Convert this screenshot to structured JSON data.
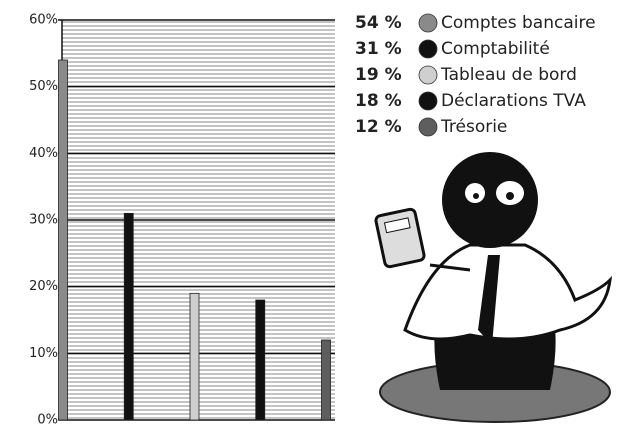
{
  "chart_data": {
    "type": "bar",
    "categories": [
      "Comptes bancaire",
      "Comptabilité",
      "Tableau de bord",
      "Déclarations TVA",
      "Trésorie"
    ],
    "values": [
      54,
      31,
      19,
      18,
      12
    ],
    "value_labels": [
      "54 %",
      "31 %",
      "19 %",
      "18 %",
      "12 %"
    ],
    "colors": [
      "#8a8a8a",
      "#111111",
      "#cfcfcf",
      "#111111",
      "#5e5e5e"
    ],
    "ylim": [
      0,
      60
    ],
    "yticks": [
      {
        "value": 0,
        "label": "0%"
      },
      {
        "value": 10,
        "label": "10%"
      },
      {
        "value": 20,
        "label": "20%"
      },
      {
        "value": 30,
        "label": "30%"
      },
      {
        "value": 40,
        "label": "40%"
      },
      {
        "value": 50,
        "label": "50%"
      },
      {
        "value": 60,
        "label": "60%"
      }
    ],
    "grid": true
  }
}
